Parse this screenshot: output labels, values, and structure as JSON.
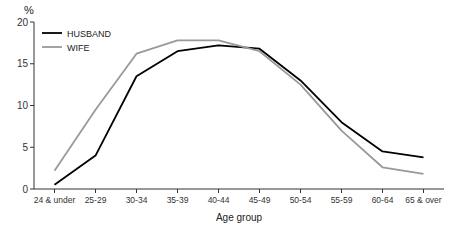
{
  "chart_data": {
    "type": "line",
    "xlabel": "Age group",
    "ylabel": "%",
    "categories": [
      "24 & under",
      "25-29",
      "30-34",
      "35-39",
      "40-44",
      "45-49",
      "50-54",
      "55-59",
      "60-64",
      "65 & over"
    ],
    "series": [
      {
        "name": "HUSBAND",
        "color": "#000000",
        "values": [
          0.5,
          4.0,
          13.5,
          16.5,
          17.2,
          16.8,
          13.0,
          8.0,
          4.5,
          3.8
        ]
      },
      {
        "name": "WIFE",
        "color": "#999999",
        "values": [
          2.2,
          9.5,
          16.2,
          17.8,
          17.8,
          16.5,
          12.5,
          7.0,
          2.6,
          1.8
        ]
      }
    ],
    "ylim": [
      0,
      20
    ],
    "yticks": [
      0,
      5,
      10,
      15,
      20
    ],
    "grid": false,
    "legend": "upper left"
  }
}
